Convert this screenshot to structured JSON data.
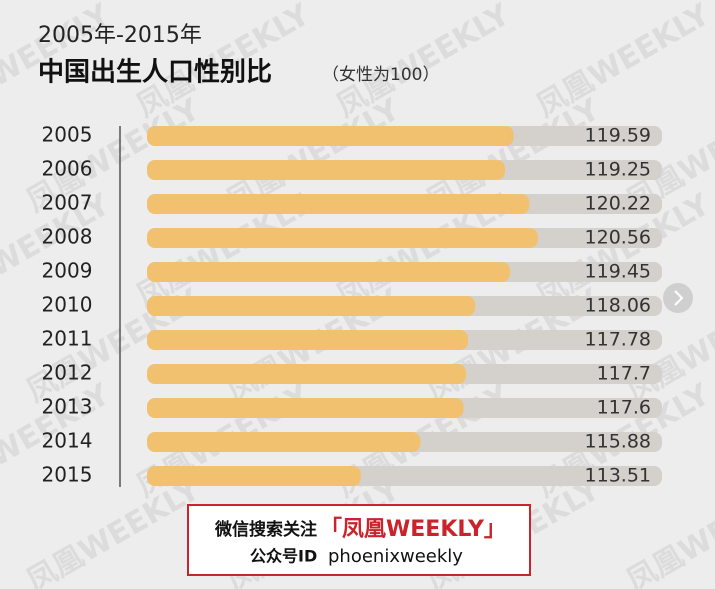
{
  "chart_data": {
    "type": "bar",
    "orientation": "horizontal",
    "title": "2005年-2015年",
    "subtitle": "中国出生人口性别比",
    "unit_note": "（女性为100）",
    "categories": [
      "2005",
      "2006",
      "2007",
      "2008",
      "2009",
      "2010",
      "2011",
      "2012",
      "2013",
      "2014",
      "2015"
    ],
    "values": [
      119.59,
      119.25,
      120.22,
      120.56,
      119.45,
      118.06,
      117.78,
      117.7,
      117.6,
      115.88,
      113.51
    ],
    "color": "#f2c16f",
    "track_color": "#d4d1cd",
    "xlim": [
      105,
      125.5
    ]
  },
  "watermark": "凤凰WEEKLY",
  "footer": {
    "prompt": "微信搜索关注",
    "brand": "「凤凰WEEKLY」",
    "id_label": "公众号ID",
    "id": "phoenixweekly"
  }
}
